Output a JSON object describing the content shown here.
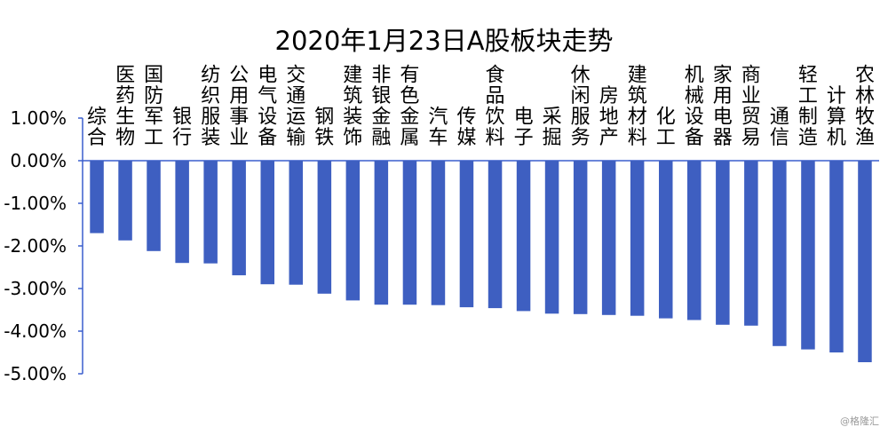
{
  "chart_data": {
    "type": "bar",
    "title": "2020年1月23日A股板块走势",
    "categories": [
      "综合",
      "医药生物",
      "国防军工",
      "银行",
      "纺织服装",
      "公用事业",
      "电气设备",
      "交通运输",
      "钢铁",
      "建筑装饰",
      "非银金融",
      "有色金属",
      "汽车",
      "传媒",
      "食品饮料",
      "电子",
      "采掘",
      "休闲服务",
      "房地产",
      "建筑材料",
      "化工",
      "机械设备",
      "家用电器",
      "商业贸易",
      "通信",
      "轻工制造",
      "计算机",
      "农林牧渔"
    ],
    "series": [
      {
        "values": [
          -1.7,
          -1.87,
          -2.12,
          -2.4,
          -2.41,
          -2.69,
          -2.9,
          -2.91,
          -3.12,
          -3.28,
          -3.38,
          -3.38,
          -3.39,
          -3.44,
          -3.46,
          -3.53,
          -3.59,
          -3.6,
          -3.62,
          -3.64,
          -3.7,
          -3.74,
          -3.85,
          -3.87,
          -4.35,
          -4.43,
          -4.5,
          -4.73
        ],
        "color": "#3E5FC1"
      }
    ],
    "ylim": [
      -5.0,
      1.0
    ],
    "yticks": [
      "1.00%",
      "0.00%",
      "-1.00%",
      "-2.00%",
      "-3.00%",
      "-4.00%",
      "-5.00%"
    ],
    "ytick_values": [
      1,
      0,
      -1,
      -2,
      -3,
      -4,
      -5
    ],
    "xlabel": "",
    "ylabel": "",
    "grid": false,
    "legend": "none"
  },
  "watermark": "@格隆汇"
}
